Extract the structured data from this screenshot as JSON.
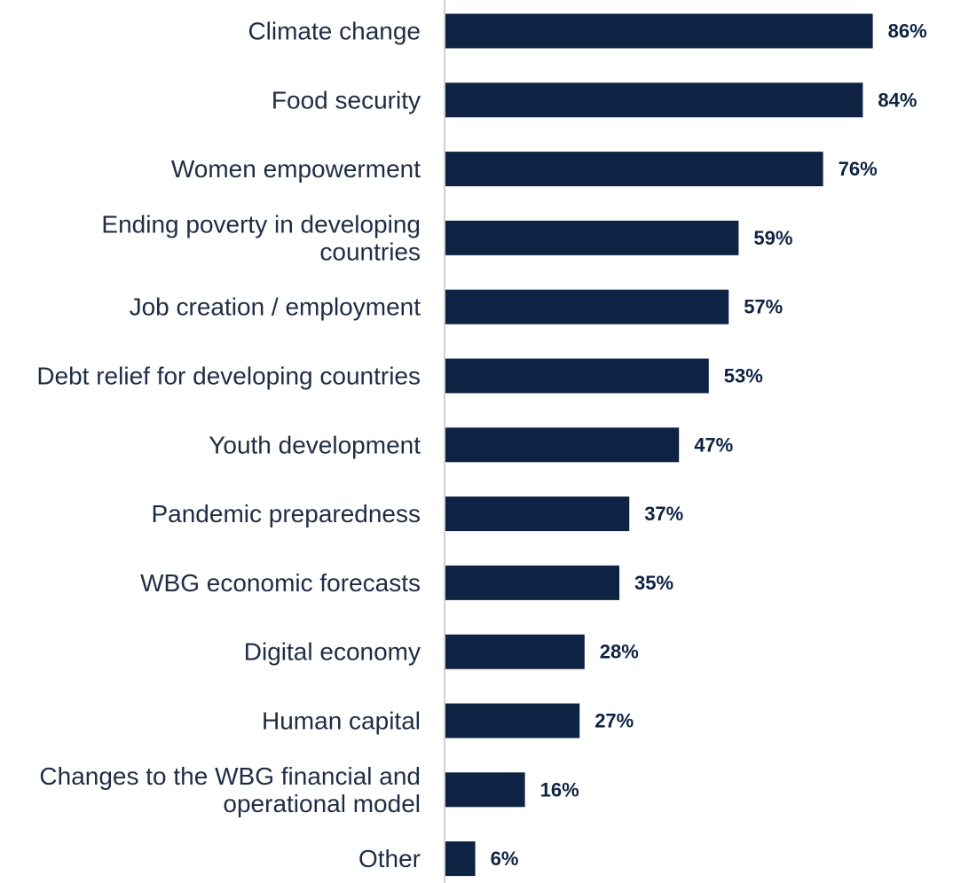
{
  "chart_data": {
    "type": "bar",
    "orientation": "horizontal",
    "categories": [
      [
        "Climate change"
      ],
      [
        "Food security"
      ],
      [
        "Women empowerment"
      ],
      [
        "Ending poverty in developing",
        "countries"
      ],
      [
        "Job creation / employment"
      ],
      [
        "Debt relief for developing countries"
      ],
      [
        "Youth development"
      ],
      [
        "Pandemic preparedness"
      ],
      [
        "WBG economic forecasts"
      ],
      [
        "Digital economy"
      ],
      [
        "Human capital"
      ],
      [
        "Changes to the WBG financial and",
        "operational model"
      ],
      [
        "Other"
      ]
    ],
    "values": [
      86,
      84,
      76,
      59,
      57,
      53,
      47,
      37,
      35,
      28,
      27,
      16,
      6
    ],
    "value_labels": [
      "86%",
      "84%",
      "76%",
      "59%",
      "57%",
      "53%",
      "47%",
      "37%",
      "35%",
      "28%",
      "27%",
      "16%",
      "6%"
    ],
    "xlim": [
      0,
      100
    ],
    "grid": false,
    "colors": {
      "bar": "#0e2244",
      "axis": "#d0d0d0",
      "category_text": "#1f2d44",
      "value_text": "#0e2244"
    }
  }
}
